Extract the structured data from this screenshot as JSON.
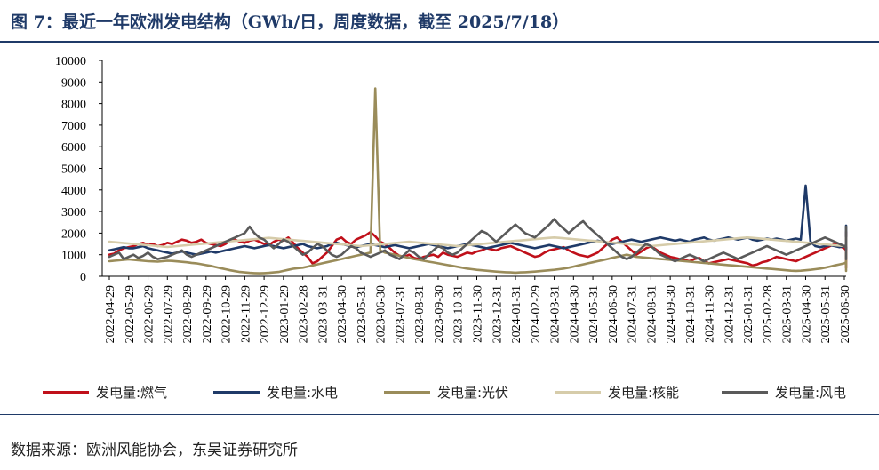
{
  "title": "图 7：最近一年欧洲发电结构（GWh/日，周度数据，截至 2025/7/18）",
  "source": "数据来源：欧洲风能协会，东吴证券研究所",
  "chart_data": {
    "type": "line",
    "ylim": [
      0,
      10000
    ],
    "yticks": [
      0,
      1000,
      2000,
      3000,
      4000,
      5000,
      6000,
      7000,
      8000,
      9000,
      10000
    ],
    "xticks": [
      "2022-04-29",
      "2022-05-29",
      "2022-06-29",
      "2022-07-29",
      "2022-08-29",
      "2022-09-29",
      "2022-10-29",
      "2022-11-29",
      "2022-12-29",
      "2023-01-29",
      "2023-02-28",
      "2023-03-31",
      "2023-04-30",
      "2023-05-31",
      "2023-06-30",
      "2023-07-31",
      "2023-08-31",
      "2023-09-30",
      "2023-10-31",
      "2023-11-30",
      "2023-12-31",
      "2024-01-31",
      "2024-02-29",
      "2024-03-31",
      "2024-04-30",
      "2024-05-31",
      "2024-06-30",
      "2024-07-31",
      "2024-08-31",
      "2024-09-30",
      "2024-10-31",
      "2024-11-30",
      "2024-12-31",
      "2025-01-31",
      "2025-02-28",
      "2025-03-31",
      "2025-04-30",
      "2025-05-31",
      "2025-06-30"
    ],
    "x_points_per_tick": 4,
    "legend_position": "bottom",
    "series": [
      {
        "name": "发电量:燃气",
        "color": "#c0101a",
        "values": [
          1000,
          1050,
          1200,
          1300,
          1350,
          1400,
          1500,
          1550,
          1450,
          1500,
          1400,
          1450,
          1550,
          1500,
          1600,
          1700,
          1650,
          1550,
          1600,
          1700,
          1550,
          1500,
          1450,
          1400,
          1500,
          1650,
          1700,
          1600,
          1550,
          1650,
          1700,
          1600,
          1500,
          1450,
          1600,
          1700,
          1650,
          1800,
          1550,
          1300,
          1100,
          900,
          600,
          700,
          900,
          1100,
          1400,
          1700,
          1800,
          1600,
          1500,
          1700,
          1800,
          1900,
          2050,
          1850,
          1600,
          1500,
          1300,
          1100,
          950,
          900,
          1000,
          850,
          800,
          900,
          950,
          1000,
          900,
          1100,
          1000,
          950,
          900,
          1000,
          1100,
          1050,
          1150,
          1200,
          1300,
          1250,
          1200,
          1300,
          1350,
          1400,
          1300,
          1200,
          1100,
          1000,
          900,
          950,
          1100,
          1200,
          1250,
          1300,
          1350,
          1200,
          1100,
          1000,
          950,
          900,
          1000,
          1100,
          1300,
          1500,
          1700,
          1800,
          1600,
          1400,
          1200,
          1000,
          1150,
          1300,
          1400,
          1250,
          1100,
          1000,
          900,
          850,
          800,
          750,
          700,
          800,
          850,
          700,
          600,
          650,
          700,
          750,
          800,
          750,
          700,
          650,
          600,
          500,
          550,
          650,
          700,
          800,
          900,
          850,
          800,
          750,
          700,
          800,
          900,
          1000,
          1100,
          1200,
          1300,
          1400,
          1500,
          1400,
          1300,
          1200,
          1000,
          800,
          750,
          900,
          1100,
          1300,
          1500,
          1400,
          1200,
          1000,
          900,
          850,
          900,
          1000,
          1300,
          1600,
          2050,
          1700,
          1400,
          1100,
          900,
          850,
          800,
          750,
          700,
          650,
          600,
          500,
          450,
          400,
          450,
          550,
          650,
          800,
          950,
          900,
          800,
          700
        ]
      },
      {
        "name": "发电量:水电",
        "color": "#1f3a68",
        "values": [
          1200,
          1250,
          1300,
          1350,
          1300,
          1300,
          1350,
          1400,
          1300,
          1250,
          1200,
          1150,
          1100,
          1050,
          1100,
          1150,
          1100,
          1050,
          1000,
          1050,
          1100,
          1150,
          1100,
          1150,
          1200,
          1250,
          1300,
          1350,
          1400,
          1350,
          1300,
          1350,
          1400,
          1450,
          1400,
          1350,
          1300,
          1350,
          1400,
          1450,
          1500,
          1400,
          1350,
          1300,
          1350,
          1400,
          1500,
          1550,
          1500,
          1450,
          1400,
          1350,
          1400,
          1450,
          1500,
          1450,
          1400,
          1350,
          1400,
          1450,
          1400,
          1350,
          1300,
          1350,
          1400,
          1450,
          1500,
          1450,
          1400,
          1350,
          1300,
          1350,
          1400,
          1450,
          1500,
          1450,
          1400,
          1350,
          1300,
          1350,
          1400,
          1450,
          1500,
          1550,
          1500,
          1450,
          1400,
          1350,
          1300,
          1350,
          1400,
          1450,
          1400,
          1350,
          1300,
          1350,
          1400,
          1450,
          1500,
          1550,
          1600,
          1650,
          1600,
          1550,
          1500,
          1550,
          1600,
          1650,
          1700,
          1650,
          1600,
          1650,
          1700,
          1750,
          1800,
          1750,
          1700,
          1650,
          1700,
          1650,
          1600,
          1700,
          1750,
          1800,
          1700,
          1650,
          1700,
          1750,
          1800,
          1750,
          1700,
          1750,
          1800,
          1700,
          1650,
          1700,
          1750,
          1700,
          1750,
          1700,
          1650,
          1700,
          1750,
          1700,
          4200,
          1600,
          1400,
          1350,
          1400,
          1450,
          1400,
          1350,
          1400,
          1450,
          1400,
          1350,
          1300,
          1350,
          1400,
          1450,
          1400,
          1350,
          1400,
          1450,
          1500,
          1450,
          1400,
          1450,
          1500,
          1550,
          1500,
          1450,
          1500,
          2350,
          1500,
          1600,
          1700,
          1650,
          1600,
          1700,
          1750,
          1650,
          1600,
          1700,
          1750,
          1700,
          1650,
          1600,
          1650,
          1700,
          1650,
          1600,
          1550,
          1500,
          1450,
          1400,
          1450,
          1400,
          1350,
          1300,
          1350,
          1400,
          1350,
          1300,
          1250,
          1300,
          1350,
          1300
        ]
      },
      {
        "name": "发电量:光伏",
        "color": "#9a8c5a",
        "values": [
          700,
          720,
          740,
          760,
          780,
          760,
          740,
          720,
          700,
          690,
          680,
          700,
          720,
          710,
          690,
          670,
          650,
          620,
          600,
          560,
          520,
          480,
          430,
          380,
          330,
          280,
          240,
          200,
          180,
          160,
          150,
          140,
          150,
          160,
          180,
          200,
          250,
          300,
          350,
          380,
          400,
          450,
          500,
          550,
          600,
          650,
          700,
          750,
          800,
          850,
          900,
          950,
          1000,
          1050,
          1100,
          8700,
          1200,
          1100,
          1050,
          1000,
          950,
          900,
          850,
          800,
          760,
          720,
          680,
          640,
          600,
          560,
          520,
          480,
          440,
          400,
          360,
          330,
          300,
          280,
          260,
          240,
          220,
          200,
          190,
          180,
          170,
          180,
          190,
          200,
          220,
          240,
          260,
          280,
          300,
          330,
          360,
          400,
          450,
          500,
          550,
          600,
          650,
          700,
          750,
          800,
          850,
          900,
          950,
          1000,
          950,
          900,
          880,
          860,
          840,
          820,
          800,
          780,
          760,
          740,
          720,
          700,
          680,
          660,
          640,
          620,
          600,
          580,
          560,
          540,
          520,
          500,
          480,
          460,
          440,
          420,
          400,
          380,
          360,
          340,
          320,
          300,
          280,
          260,
          250,
          260,
          280,
          300,
          330,
          360,
          400,
          450,
          500,
          550,
          600,
          650,
          700,
          750,
          800,
          850,
          900,
          950,
          1000,
          950,
          900,
          850,
          800,
          750,
          700,
          650,
          600,
          550,
          500,
          450,
          400,
          350,
          300,
          250,
          300,
          350,
          400,
          450,
          500,
          550,
          600,
          650,
          700,
          750,
          800,
          850,
          900,
          950,
          1000,
          1050,
          1100,
          1050,
          1000,
          950,
          900,
          850,
          800,
          750,
          700,
          650,
          600
        ]
      },
      {
        "name": "发电量:核能",
        "color": "#d6ccaa",
        "values": [
          1600,
          1580,
          1560,
          1540,
          1520,
          1500,
          1480,
          1460,
          1440,
          1420,
          1400,
          1380,
          1360,
          1380,
          1400,
          1420,
          1440,
          1460,
          1480,
          1500,
          1520,
          1540,
          1560,
          1580,
          1600,
          1620,
          1640,
          1660,
          1680,
          1700,
          1720,
          1740,
          1760,
          1780,
          1760,
          1740,
          1720,
          1700,
          1680,
          1660,
          1640,
          1620,
          1600,
          1580,
          1560,
          1540,
          1520,
          1500,
          1480,
          1460,
          1440,
          1420,
          1400,
          1420,
          1440,
          1460,
          1480,
          1500,
          1520,
          1540,
          1560,
          1580,
          1600,
          1580,
          1560,
          1540,
          1520,
          1500,
          1480,
          1460,
          1440,
          1420,
          1400,
          1420,
          1440,
          1460,
          1480,
          1500,
          1520,
          1540,
          1560,
          1580,
          1600,
          1620,
          1640,
          1660,
          1680,
          1700,
          1720,
          1740,
          1760,
          1780,
          1800,
          1780,
          1760,
          1740,
          1720,
          1700,
          1680,
          1660,
          1640,
          1620,
          1600,
          1580,
          1560,
          1540,
          1520,
          1500,
          1480,
          1460,
          1440,
          1420,
          1400,
          1420,
          1440,
          1460,
          1480,
          1500,
          1520,
          1540,
          1560,
          1580,
          1600,
          1620,
          1640,
          1660,
          1680,
          1700,
          1720,
          1740,
          1760,
          1780,
          1800,
          1780,
          1760,
          1740,
          1720,
          1700,
          1680,
          1660,
          1640,
          1620,
          1600,
          1580,
          1560,
          1540,
          1520,
          1500,
          1480,
          1460,
          1440,
          1420,
          1400,
          1420,
          1440,
          1460,
          1480,
          1500,
          1520,
          1540,
          1560,
          1580,
          1600,
          1620,
          1640,
          1660,
          1680,
          1700,
          1720,
          1740,
          1760,
          1780,
          1800,
          1780,
          1760,
          1740,
          1720,
          1700,
          1680,
          1660,
          1640,
          1620,
          1600,
          1580,
          1560,
          1540,
          1520,
          1500,
          1480,
          1460,
          1440,
          1420,
          1400,
          1420,
          1440,
          1460,
          1480,
          1500,
          1520,
          1540,
          1560
        ]
      },
      {
        "name": "发电量:风电",
        "color": "#5a5a5a",
        "values": [
          900,
          1000,
          1100,
          800,
          900,
          1000,
          850,
          950,
          1100,
          900,
          800,
          850,
          900,
          1000,
          1100,
          1200,
          1000,
          900,
          1000,
          1100,
          1200,
          1300,
          1400,
          1500,
          1600,
          1700,
          1800,
          1900,
          2000,
          2300,
          2000,
          1800,
          1700,
          1500,
          1300,
          1500,
          1700,
          1600,
          1400,
          1200,
          1000,
          1100,
          1300,
          1500,
          1400,
          1200,
          1000,
          900,
          1000,
          1200,
          1400,
          1300,
          1100,
          1000,
          900,
          1000,
          1100,
          1200,
          1000,
          900,
          800,
          1000,
          1200,
          1100,
          900,
          800,
          1000,
          1200,
          1400,
          1300,
          1100,
          1000,
          1100,
          1300,
          1500,
          1700,
          1900,
          2100,
          2000,
          1800,
          1600,
          1800,
          2000,
          2200,
          2400,
          2200,
          2000,
          1900,
          1800,
          2000,
          2200,
          2400,
          2650,
          2400,
          2200,
          2000,
          2200,
          2400,
          2550,
          2300,
          2100,
          1900,
          1700,
          1500,
          1300,
          1100,
          900,
          800,
          900,
          1100,
          1300,
          1500,
          1400,
          1200,
          1000,
          900,
          800,
          700,
          800,
          900,
          1000,
          900,
          800,
          700,
          800,
          900,
          1000,
          1100,
          1000,
          900,
          800,
          900,
          1000,
          1100,
          1200,
          1300,
          1400,
          1300,
          1200,
          1100,
          1000,
          1100,
          1200,
          1300,
          1400,
          1500,
          1600,
          1700,
          1800,
          1700,
          1600,
          1500,
          1400,
          1300,
          1200,
          1100,
          1000,
          1200,
          1400,
          1600,
          1800,
          2000,
          1800,
          1600,
          1400,
          1200,
          1400,
          1600,
          1800,
          2000,
          2200,
          2300,
          2100,
          1900,
          1700,
          1500,
          1300,
          1100,
          900,
          1000,
          1200,
          1100,
          900,
          800,
          900,
          1000,
          1100,
          1200,
          1000,
          900,
          800,
          1000,
          1200,
          1100,
          900
        ]
      }
    ]
  }
}
